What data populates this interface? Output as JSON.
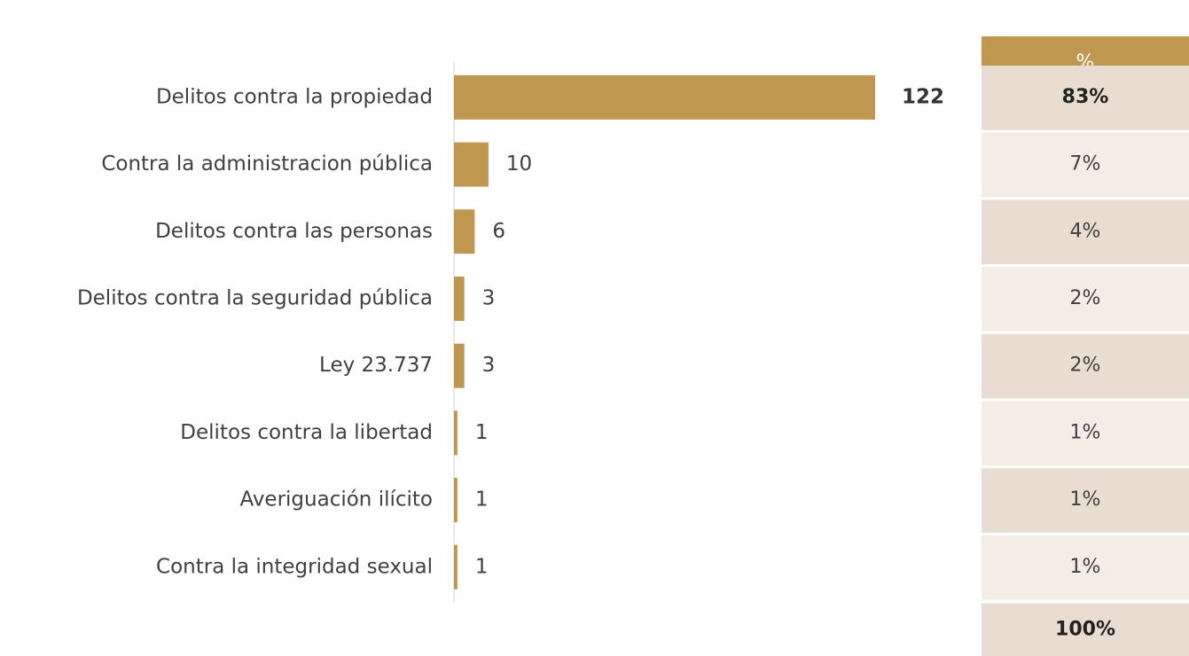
{
  "chart_data": {
    "type": "bar",
    "orientation": "horizontal",
    "categories": [
      "Delitos contra la propiedad",
      "Contra la administracion pública",
      "Delitos contra las personas",
      "Delitos contra la seguridad pública",
      "Ley 23.737",
      "Delitos contra la libertad",
      "Averiguación ilícito",
      "Contra la integridad sexual"
    ],
    "values": [
      122,
      10,
      6,
      3,
      3,
      1,
      1,
      1
    ],
    "color": "#c0974f"
  },
  "table": {
    "header": "%",
    "rows": [
      "83%",
      "7%",
      "4%",
      "2%",
      "2%",
      "1%",
      "1%",
      "1%"
    ],
    "total": "100%"
  }
}
